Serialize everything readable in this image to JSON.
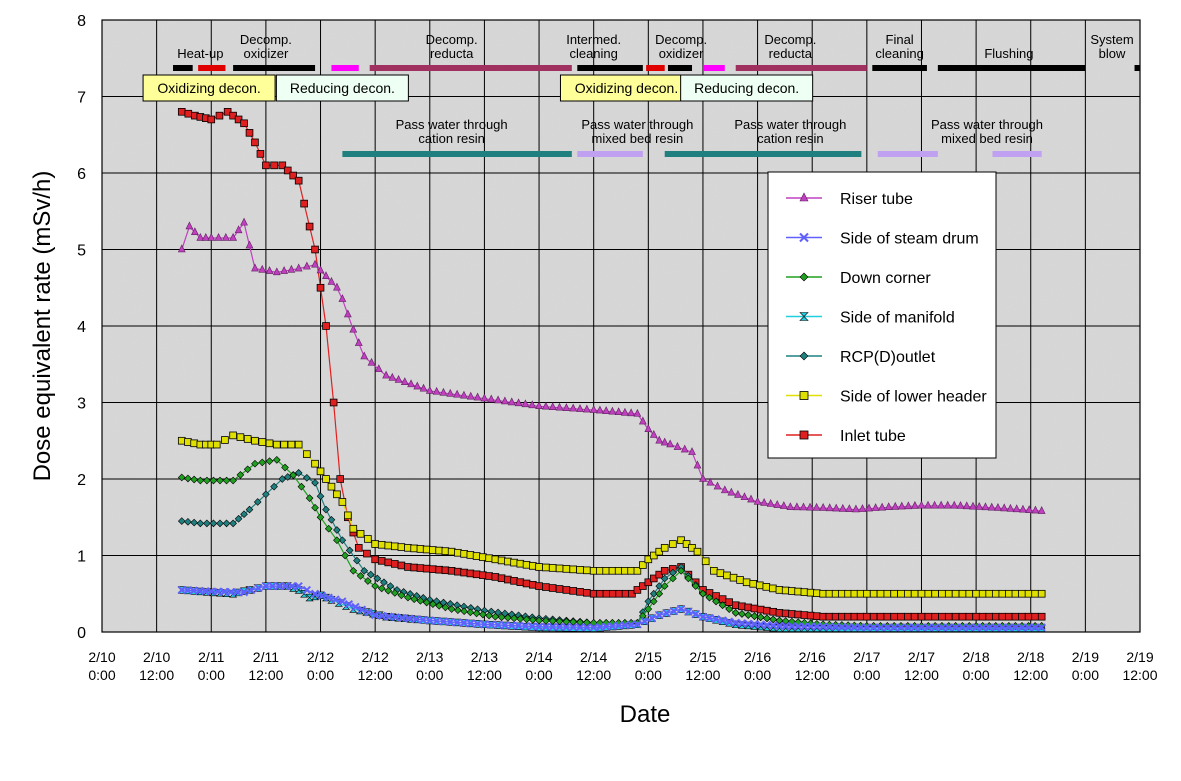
{
  "chart_data": {
    "type": "scatter",
    "ylabel": "Dose equivalent rate (mSv/h)",
    "xlabel": "Date",
    "ylim": [
      0,
      8
    ],
    "xlim": [
      0,
      9
    ],
    "x_unit_note": "x values in days counted from the first axis tick (2/10 0:00)",
    "y_ticks": [
      "0",
      "1",
      "2",
      "3",
      "4",
      "5",
      "6",
      "7",
      "8"
    ],
    "x_ticks": [
      [
        "2/10",
        "0:00"
      ],
      [
        "2/10",
        "12:00"
      ],
      [
        "2/11",
        "0:00"
      ],
      [
        "2/11",
        "12:00"
      ],
      [
        "2/12",
        "0:00"
      ],
      [
        "2/12",
        "12:00"
      ],
      [
        "2/13",
        "0:00"
      ],
      [
        "2/13",
        "12:00"
      ],
      [
        "2/14",
        "0:00"
      ],
      [
        "2/14",
        "12:00"
      ],
      [
        "2/15",
        "0:00"
      ],
      [
        "2/15",
        "12:00"
      ],
      [
        "2/16",
        "0:00"
      ],
      [
        "2/16",
        "12:00"
      ],
      [
        "2/17",
        "0:00"
      ],
      [
        "2/17",
        "12:00"
      ],
      [
        "2/18",
        "0:00"
      ],
      [
        "2/18",
        "12:00"
      ],
      [
        "2/19",
        "0:00"
      ],
      [
        "2/19",
        "12:00"
      ]
    ],
    "grid": true,
    "legend_position": "right",
    "series": [
      {
        "name": "Riser tube",
        "color": "#c040c0",
        "marker": "triangle",
        "points": [
          [
            0.73,
            5.0
          ],
          [
            0.8,
            5.3
          ],
          [
            0.9,
            5.15
          ],
          [
            1.0,
            5.15
          ],
          [
            1.2,
            5.15
          ],
          [
            1.3,
            5.35
          ],
          [
            1.4,
            4.75
          ],
          [
            1.6,
            4.7
          ],
          [
            1.8,
            4.75
          ],
          [
            1.95,
            4.8
          ],
          [
            2.05,
            4.65
          ],
          [
            2.15,
            4.5
          ],
          [
            2.2,
            4.35
          ],
          [
            2.3,
            3.95
          ],
          [
            2.4,
            3.6
          ],
          [
            2.6,
            3.35
          ],
          [
            3.0,
            3.15
          ],
          [
            3.5,
            3.05
          ],
          [
            4.0,
            2.95
          ],
          [
            4.5,
            2.9
          ],
          [
            4.9,
            2.85
          ],
          [
            5.0,
            2.65
          ],
          [
            5.1,
            2.5
          ],
          [
            5.2,
            2.45
          ],
          [
            5.4,
            2.35
          ],
          [
            5.5,
            2.0
          ],
          [
            5.7,
            1.85
          ],
          [
            6.0,
            1.7
          ],
          [
            6.3,
            1.63
          ],
          [
            6.6,
            1.62
          ],
          [
            6.9,
            1.6
          ],
          [
            7.2,
            1.63
          ],
          [
            7.5,
            1.65
          ],
          [
            7.8,
            1.65
          ],
          [
            8.2,
            1.62
          ],
          [
            8.6,
            1.58
          ]
        ]
      },
      {
        "name": "Side of steam drum",
        "color": "#6060ff",
        "marker": "x",
        "points": [
          [
            0.73,
            0.55
          ],
          [
            1.0,
            0.53
          ],
          [
            1.3,
            0.52
          ],
          [
            1.5,
            0.6
          ],
          [
            1.8,
            0.6
          ],
          [
            1.95,
            0.5
          ],
          [
            2.2,
            0.4
          ],
          [
            2.5,
            0.22
          ],
          [
            3.0,
            0.15
          ],
          [
            3.5,
            0.1
          ],
          [
            4.0,
            0.07
          ],
          [
            4.5,
            0.06
          ],
          [
            4.9,
            0.1
          ],
          [
            5.1,
            0.22
          ],
          [
            5.3,
            0.3
          ],
          [
            5.5,
            0.2
          ],
          [
            5.8,
            0.12
          ],
          [
            6.2,
            0.08
          ],
          [
            6.6,
            0.07
          ],
          [
            7.0,
            0.06
          ],
          [
            7.5,
            0.06
          ],
          [
            8.0,
            0.06
          ],
          [
            8.6,
            0.06
          ]
        ]
      },
      {
        "name": "Down corner",
        "color": "#20a020",
        "marker": "diamond",
        "points": [
          [
            0.73,
            2.02
          ],
          [
            0.9,
            1.98
          ],
          [
            1.2,
            1.98
          ],
          [
            1.4,
            2.2
          ],
          [
            1.6,
            2.25
          ],
          [
            1.75,
            2.05
          ],
          [
            1.9,
            1.75
          ],
          [
            2.0,
            1.5
          ],
          [
            2.15,
            1.2
          ],
          [
            2.3,
            0.8
          ],
          [
            2.5,
            0.6
          ],
          [
            2.8,
            0.45
          ],
          [
            3.2,
            0.3
          ],
          [
            3.6,
            0.2
          ],
          [
            4.0,
            0.15
          ],
          [
            4.5,
            0.12
          ],
          [
            4.9,
            0.12
          ],
          [
            5.0,
            0.3
          ],
          [
            5.15,
            0.6
          ],
          [
            5.3,
            0.8
          ],
          [
            5.5,
            0.5
          ],
          [
            5.8,
            0.25
          ],
          [
            6.2,
            0.15
          ],
          [
            6.6,
            0.1
          ],
          [
            7.0,
            0.08
          ],
          [
            7.5,
            0.08
          ],
          [
            8.0,
            0.08
          ],
          [
            8.6,
            0.08
          ]
        ]
      },
      {
        "name": "Side of manifold",
        "color": "#20d0e0",
        "marker": "bowtie",
        "points": [
          [
            0.73,
            0.55
          ],
          [
            0.9,
            0.53
          ],
          [
            1.2,
            0.5
          ],
          [
            1.35,
            0.55
          ],
          [
            1.5,
            0.6
          ],
          [
            1.7,
            0.6
          ],
          [
            1.8,
            0.55
          ],
          [
            1.9,
            0.45
          ],
          [
            2.0,
            0.48
          ],
          [
            2.1,
            0.42
          ],
          [
            2.3,
            0.3
          ],
          [
            2.6,
            0.2
          ],
          [
            3.0,
            0.15
          ],
          [
            3.5,
            0.1
          ],
          [
            4.0,
            0.06
          ],
          [
            4.5,
            0.05
          ],
          [
            4.9,
            0.1
          ],
          [
            5.1,
            0.22
          ],
          [
            5.3,
            0.3
          ],
          [
            5.5,
            0.2
          ],
          [
            5.8,
            0.1
          ],
          [
            6.2,
            0.05
          ],
          [
            6.6,
            0.05
          ],
          [
            7.0,
            0.05
          ],
          [
            7.5,
            0.05
          ],
          [
            8.0,
            0.05
          ],
          [
            8.6,
            0.05
          ]
        ]
      },
      {
        "name": "RCP(D)outlet",
        "color": "#208080",
        "marker": "diamond",
        "points": [
          [
            0.73,
            1.45
          ],
          [
            0.9,
            1.42
          ],
          [
            1.2,
            1.42
          ],
          [
            1.35,
            1.6
          ],
          [
            1.5,
            1.8
          ],
          [
            1.65,
            2.0
          ],
          [
            1.8,
            2.08
          ],
          [
            1.95,
            1.95
          ],
          [
            2.05,
            1.6
          ],
          [
            2.2,
            1.2
          ],
          [
            2.4,
            0.8
          ],
          [
            2.7,
            0.55
          ],
          [
            3.0,
            0.42
          ],
          [
            3.5,
            0.28
          ],
          [
            4.0,
            0.18
          ],
          [
            4.5,
            0.12
          ],
          [
            4.9,
            0.12
          ],
          [
            5.0,
            0.4
          ],
          [
            5.15,
            0.7
          ],
          [
            5.3,
            0.85
          ],
          [
            5.5,
            0.5
          ],
          [
            5.8,
            0.25
          ],
          [
            6.2,
            0.15
          ],
          [
            6.6,
            0.08
          ],
          [
            7.0,
            0.06
          ],
          [
            7.5,
            0.05
          ],
          [
            8.0,
            0.05
          ],
          [
            8.6,
            0.05
          ]
        ]
      },
      {
        "name": "Side of lower header",
        "color": "#e0e000",
        "marker": "square",
        "points": [
          [
            0.73,
            2.5
          ],
          [
            0.9,
            2.45
          ],
          [
            1.05,
            2.45
          ],
          [
            1.2,
            2.57
          ],
          [
            1.4,
            2.5
          ],
          [
            1.6,
            2.45
          ],
          [
            1.8,
            2.45
          ],
          [
            1.95,
            2.2
          ],
          [
            2.05,
            2.0
          ],
          [
            2.2,
            1.7
          ],
          [
            2.3,
            1.35
          ],
          [
            2.5,
            1.15
          ],
          [
            2.8,
            1.1
          ],
          [
            3.2,
            1.05
          ],
          [
            3.6,
            0.95
          ],
          [
            4.0,
            0.85
          ],
          [
            4.5,
            0.8
          ],
          [
            4.9,
            0.8
          ],
          [
            5.0,
            0.95
          ],
          [
            5.15,
            1.1
          ],
          [
            5.3,
            1.2
          ],
          [
            5.45,
            1.05
          ],
          [
            5.6,
            0.8
          ],
          [
            5.9,
            0.65
          ],
          [
            6.2,
            0.55
          ],
          [
            6.6,
            0.5
          ],
          [
            7.0,
            0.5
          ],
          [
            7.5,
            0.5
          ],
          [
            8.0,
            0.5
          ],
          [
            8.6,
            0.5
          ]
        ]
      },
      {
        "name": "Inlet tube",
        "color": "#e02020",
        "marker": "square",
        "points": [
          [
            0.73,
            6.8
          ],
          [
            0.85,
            6.75
          ],
          [
            1.0,
            6.7
          ],
          [
            1.15,
            6.8
          ],
          [
            1.3,
            6.65
          ],
          [
            1.4,
            6.4
          ],
          [
            1.5,
            6.1
          ],
          [
            1.65,
            6.1
          ],
          [
            1.8,
            5.9
          ],
          [
            1.85,
            5.6
          ],
          [
            1.95,
            5.0
          ],
          [
            2.05,
            4.0
          ],
          [
            2.12,
            3.0
          ],
          [
            2.18,
            2.0
          ],
          [
            2.25,
            1.5
          ],
          [
            2.35,
            1.1
          ],
          [
            2.5,
            0.95
          ],
          [
            2.8,
            0.85
          ],
          [
            3.2,
            0.8
          ],
          [
            3.6,
            0.72
          ],
          [
            4.0,
            0.6
          ],
          [
            4.5,
            0.5
          ],
          [
            4.85,
            0.5
          ],
          [
            5.0,
            0.65
          ],
          [
            5.15,
            0.8
          ],
          [
            5.3,
            0.85
          ],
          [
            5.5,
            0.55
          ],
          [
            5.8,
            0.35
          ],
          [
            6.2,
            0.25
          ],
          [
            6.6,
            0.2
          ],
          [
            7.0,
            0.2
          ],
          [
            7.5,
            0.2
          ],
          [
            8.0,
            0.2
          ],
          [
            8.6,
            0.2
          ]
        ]
      }
    ],
    "process_steps": [
      {
        "label": [
          "Heat-up"
        ],
        "x": 0.9,
        "bars": [
          {
            "x0": 0.65,
            "x1": 0.83,
            "color": "#000000"
          },
          {
            "x0": 0.88,
            "x1": 1.13,
            "color": "#e00000"
          }
        ]
      },
      {
        "label": [
          "Decomp.",
          "oxidizer"
        ],
        "x": 1.5,
        "bars": [
          {
            "x0": 1.2,
            "x1": 1.95,
            "color": "#000000"
          }
        ]
      },
      {
        "label": [
          "Decomp.",
          "reducta"
        ],
        "x": 3.2,
        "bars": [
          {
            "x0": 2.1,
            "x1": 2.35,
            "color": "#ff00ff"
          },
          {
            "x0": 2.45,
            "x1": 4.3,
            "color": "#a03060"
          }
        ]
      },
      {
        "label": [
          "Intermed.",
          "cleaning"
        ],
        "x": 4.5,
        "bars": [
          {
            "x0": 4.35,
            "x1": 4.95,
            "color": "#000000"
          },
          {
            "x0": 4.98,
            "x1": 5.15,
            "color": "#e00000"
          }
        ]
      },
      {
        "label": [
          "Decomp.",
          "oxidizer"
        ],
        "x": 5.3,
        "bars": [
          {
            "x0": 5.18,
            "x1": 5.4,
            "color": "#000000"
          }
        ]
      },
      {
        "label": [
          "Decomp.",
          "reducta"
        ],
        "x": 6.3,
        "bars": [
          {
            "x0": 5.5,
            "x1": 5.7,
            "color": "#ff00ff"
          },
          {
            "x0": 5.8,
            "x1": 7.0,
            "color": "#a03060"
          }
        ]
      },
      {
        "label": [
          "Final",
          "cleaning"
        ],
        "x": 7.3,
        "bars": [
          {
            "x0": 7.05,
            "x1": 7.55,
            "color": "#000000"
          }
        ]
      },
      {
        "label": [
          "Flushing"
        ],
        "x": 8.3,
        "bars": [
          {
            "x0": 7.65,
            "x1": 9.0,
            "color": "#000000"
          }
        ]
      },
      {
        "label": [
          "System",
          "blow"
        ],
        "x": 9.6,
        "bars": [
          {
            "x0": 9.45,
            "x1": 9.6,
            "color": "#000000"
          }
        ]
      }
    ],
    "decon_boxes": [
      {
        "label": "Oxidizing decon.",
        "x": 0.98,
        "bg": "#ffff99"
      },
      {
        "label": "Reducing decon.",
        "x": 2.2,
        "bg": "#eefff4"
      },
      {
        "label": "Oxidizing decon.",
        "x": 4.8,
        "bg": "#ffff99"
      },
      {
        "label": "Reducing decon.",
        "x": 5.9,
        "bg": "#eefff4"
      }
    ],
    "resin_phases": [
      {
        "label": [
          "Pass water through",
          "cation resin"
        ],
        "x": 3.2,
        "bar": {
          "x0": 2.2,
          "x1": 4.3,
          "color": "#208080"
        }
      },
      {
        "label": [
          "Pass water through",
          "mixed bed resin"
        ],
        "x": 4.9,
        "bar": {
          "x0": 4.35,
          "x1": 4.95,
          "color": "#c0a0f0"
        }
      },
      {
        "label": [
          "Pass water through",
          "cation resin"
        ],
        "x": 6.3,
        "bar": {
          "x0": 5.15,
          "x1": 6.95,
          "color": "#208080"
        }
      },
      {
        "label": [
          "Pass water through",
          "mixed bed resin"
        ],
        "x": 8.1,
        "bar": {
          "x0": 7.1,
          "x1": 7.65,
          "color": "#c0a0f0"
        }
      },
      {
        "label": [],
        "x": 8.7,
        "bar": {
          "x0": 8.15,
          "x1": 8.6,
          "color": "#c0a0f0"
        }
      }
    ]
  }
}
